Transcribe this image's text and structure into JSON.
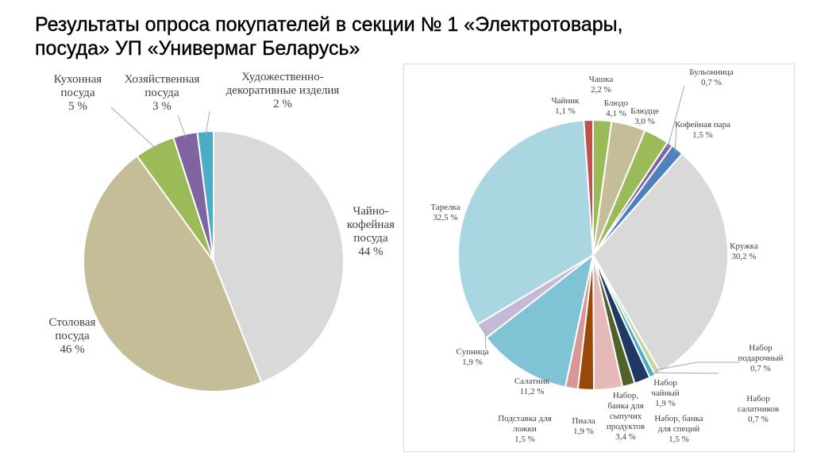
{
  "title": {
    "line1": "Результаты опроса покупателей в секции № 1 «Электротовары,",
    "line2": "посуда» УП «Универмаг Беларусь»"
  },
  "chart_data": [
    {
      "type": "pie",
      "unit": "%",
      "slices": [
        {
          "label_lines": [
            "Чайно-",
            "кофейная",
            "посуда"
          ],
          "value_text": "44 %",
          "value": 44,
          "color": "#d9d9d9"
        },
        {
          "label_lines": [
            "Столовая",
            "посуда"
          ],
          "value_text": "46 %",
          "value": 46,
          "color": "#c4bd97"
        },
        {
          "label_lines": [
            "Кухонная",
            "посуда"
          ],
          "value_text": "5 %",
          "value": 5,
          "color": "#9bbb59"
        },
        {
          "label_lines": [
            "Хозяйственная",
            "посуда"
          ],
          "value_text": "3 %",
          "value": 3,
          "color": "#8064a2"
        },
        {
          "label_lines": [
            "Художественно-",
            "декоративные изделия"
          ],
          "value_text": "2 %",
          "value": 2,
          "color": "#4bacc6"
        }
      ]
    },
    {
      "type": "pie",
      "unit": "%",
      "slices": [
        {
          "label_lines": [
            "Чашка"
          ],
          "value_text": "2,2 %",
          "value": 2.2,
          "color": "#9bbb59"
        },
        {
          "label_lines": [
            "Блюдо"
          ],
          "value_text": "4,1 %",
          "value": 4.1,
          "color": "#c4bd97"
        },
        {
          "label_lines": [
            "Блюдце"
          ],
          "value_text": "3,0 %",
          "value": 3.0,
          "color": "#9bbb59"
        },
        {
          "label_lines": [
            "Бульонница"
          ],
          "value_text": "0,7 %",
          "value": 0.7,
          "color": "#8064a2"
        },
        {
          "label_lines": [
            "Кофейная пара"
          ],
          "value_text": "1,5 %",
          "value": 1.5,
          "color": "#4f81bd"
        },
        {
          "label_lines": [
            "Кружка"
          ],
          "value_text": "30,2 %",
          "value": 30.2,
          "color": "#d9d9d9"
        },
        {
          "label_lines": [
            "Набор",
            "подарочный"
          ],
          "value_text": "0,7 %",
          "value": 0.7,
          "color": "#c3d69b"
        },
        {
          "label_lines": [
            "Набор",
            "салатников"
          ],
          "value_text": "0,7 %",
          "value": 0.7,
          "color": "#4bacc6"
        },
        {
          "label_lines": [
            "Набор",
            "чайный"
          ],
          "value_text": "1,9 %",
          "value": 1.9,
          "color": "#1f3864"
        },
        {
          "label_lines": [
            "Набор, банка",
            "для специй"
          ],
          "value_text": "1,5 %",
          "value": 1.5,
          "color": "#4f6228"
        },
        {
          "label_lines": [
            "Набор,",
            "банка для",
            "сыпучих",
            "продуктов"
          ],
          "value_text": "3,4 %",
          "value": 3.4,
          "color": "#e6b9b8"
        },
        {
          "label_lines": [
            "Пиала"
          ],
          "value_text": "1,9 %",
          "value": 1.9,
          "color": "#984807"
        },
        {
          "label_lines": [
            "Подставка для",
            "ложки"
          ],
          "value_text": "1,5 %",
          "value": 1.5,
          "color": "#d99694"
        },
        {
          "label_lines": [
            "Салатник"
          ],
          "value_text": "11,2 %",
          "value": 11.2,
          "color": "#7fc3d4"
        },
        {
          "label_lines": [
            "Супница"
          ],
          "value_text": "1,9 %",
          "value": 1.9,
          "color": "#c5b9d7"
        },
        {
          "label_lines": [
            "Тарелка"
          ],
          "value_text": "32,5 %",
          "value": 32.5,
          "color": "#a9d6e0"
        },
        {
          "label_lines": [
            "Чайник"
          ],
          "value_text": "1,1 %",
          "value": 1.1,
          "color": "#c0504d"
        }
      ]
    }
  ]
}
